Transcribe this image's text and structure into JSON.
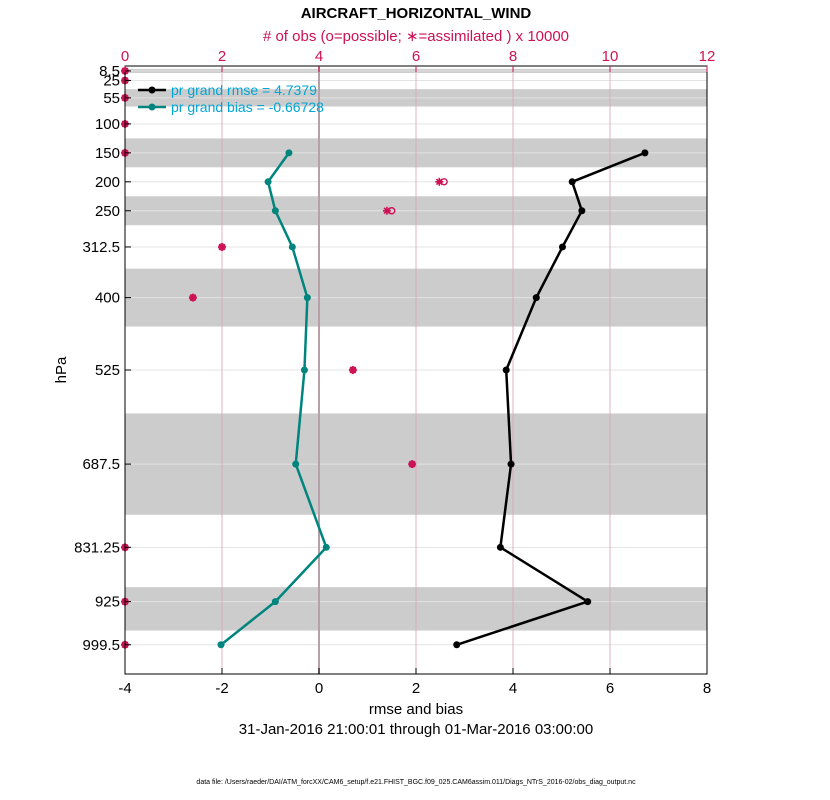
{
  "chart_data": {
    "type": "line",
    "title": "AIRCRAFT_HORIZONTAL_WIND",
    "top_axis_label": "# of obs (o=possible; ∗=assimilated ) x 10000",
    "xlabel": "rmse and bias",
    "ylabel": "hPa",
    "date_range": "31-Jan-2016 21:00:01 through 01-Mar-2016 03:00:00",
    "footnote": "data file: /Users/raeder/DAI/ATM_forcXX/CAM6_setup/f.e21.FHIST_BGC.f09_025.CAM6assim.011/Diags_NTrS_2016-02/obs_diag_output.nc",
    "xlim": [
      -4,
      8
    ],
    "x_ticks": [
      "-4",
      "-2",
      "0",
      "2",
      "4",
      "6",
      "8"
    ],
    "top_xlim": [
      0,
      12
    ],
    "top_ticks": [
      "0",
      "2",
      "4",
      "6",
      "8",
      "10",
      "12"
    ],
    "ylim": [
      1050,
      0
    ],
    "levels": [
      8.5,
      25,
      55,
      100,
      150,
      200,
      250,
      312.5,
      400,
      525,
      687.5,
      831.25,
      925,
      999.5
    ],
    "level_labels": [
      "8.5",
      "25",
      "55",
      "100",
      "150",
      "200",
      "250",
      "312.5",
      "400",
      "525",
      "687.5",
      "831.25",
      "925",
      "999.5"
    ],
    "bands": [
      [
        5,
        12
      ],
      [
        40,
        70
      ],
      [
        125,
        175
      ],
      [
        225,
        275
      ],
      [
        350,
        450
      ],
      [
        600,
        775
      ],
      [
        900,
        975
      ]
    ],
    "zero_line": 0,
    "series": [
      {
        "name": "pr grand rmse = 4.7379",
        "color": "#000000",
        "levels": [
          150,
          200,
          250,
          312.5,
          400,
          525,
          687.5,
          831.25,
          925,
          999.5
        ],
        "values": [
          6.72,
          5.22,
          5.42,
          5.02,
          4.48,
          3.86,
          3.96,
          3.74,
          5.54,
          2.84
        ]
      },
      {
        "name": "pr grand bias = -0.66728",
        "color": "#00857e",
        "levels": [
          150,
          200,
          250,
          312.5,
          400,
          525,
          687.5,
          831.25,
          925,
          999.5
        ],
        "values": [
          -0.62,
          -1.05,
          -0.9,
          -0.55,
          -0.24,
          -0.3,
          -0.48,
          0.15,
          -0.9,
          -2.02
        ]
      }
    ],
    "obs_count": {
      "color": "#cc1155",
      "levels": [
        8.5,
        25,
        55,
        100,
        150,
        200,
        250,
        312.5,
        400,
        525,
        687.5,
        831.25,
        925,
        999.5
      ],
      "possible": [
        0,
        0,
        0,
        0,
        0,
        6.58,
        5.5,
        2,
        1.4,
        4.7,
        5.92,
        0,
        0,
        0
      ],
      "assimilated": [
        0,
        0,
        0,
        0,
        0,
        6.48,
        5.4,
        2,
        1.4,
        4.7,
        5.92,
        0,
        0,
        0
      ]
    }
  }
}
